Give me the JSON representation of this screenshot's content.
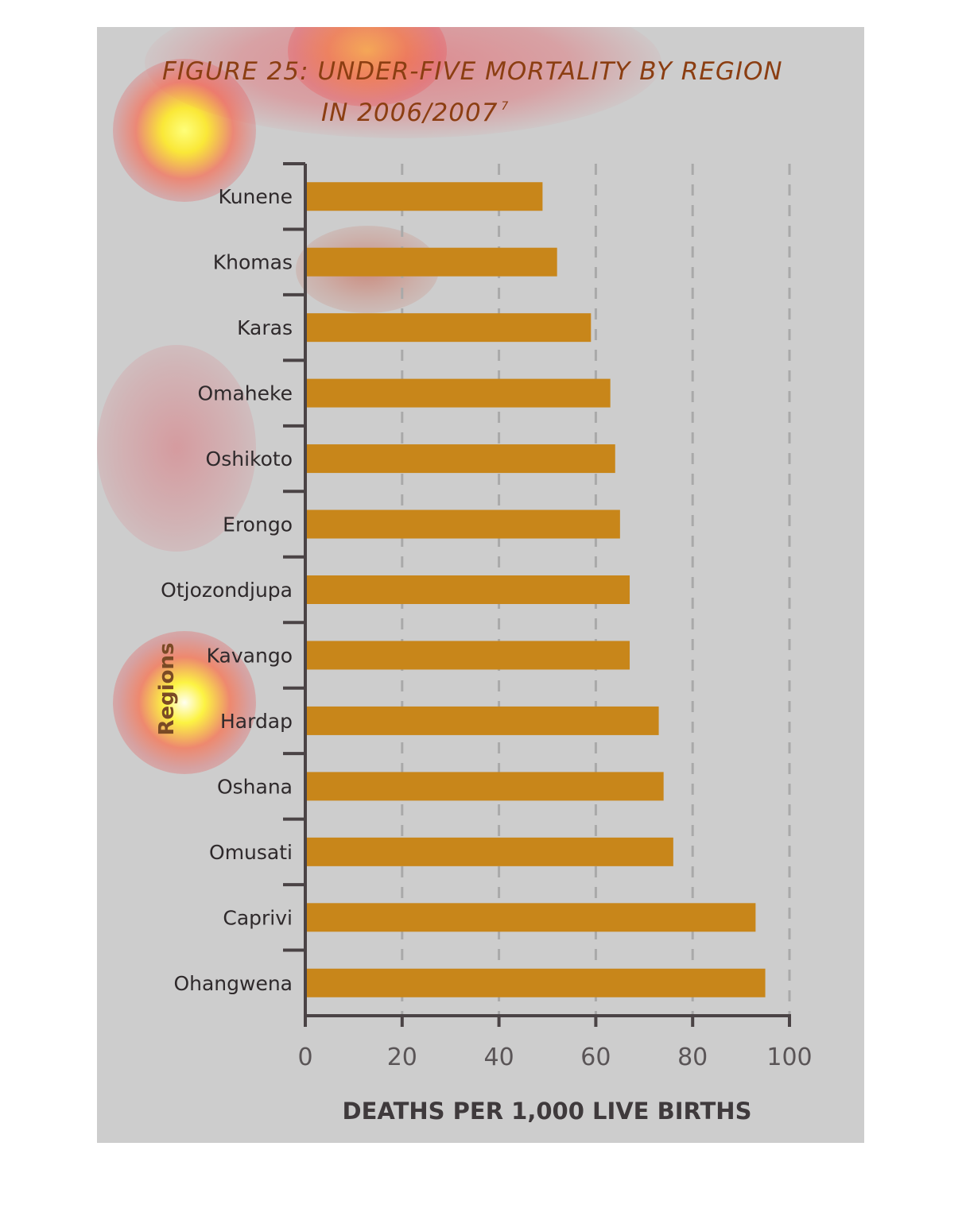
{
  "chart_data": {
    "type": "bar",
    "orientation": "horizontal",
    "title_line1": "FIGURE 25: UNDER-FIVE MORTALITY BY REGION",
    "title_line2": "IN 2006/2007",
    "title_superscript": "7",
    "xlabel": "DEATHS PER 1,000 LIVE BIRTHS",
    "ylabel": "Regions",
    "xlim": [
      0,
      100
    ],
    "xticks": [
      "0",
      "20",
      "40",
      "60",
      "80",
      "100"
    ],
    "grid": "vertical dashed",
    "categories": [
      "Kunene",
      "Khomas",
      "Karas",
      "Omaheke",
      "Oshikoto",
      "Erongo",
      "Otjozondjupa",
      "Kavango",
      "Hardap",
      "Oshana",
      "Omusati",
      "Caprivi",
      "Ohangwena"
    ],
    "values": [
      49,
      52,
      59,
      63,
      64,
      65,
      67,
      67,
      73,
      74,
      76,
      93,
      95
    ],
    "bar_color": "#c8861a"
  }
}
